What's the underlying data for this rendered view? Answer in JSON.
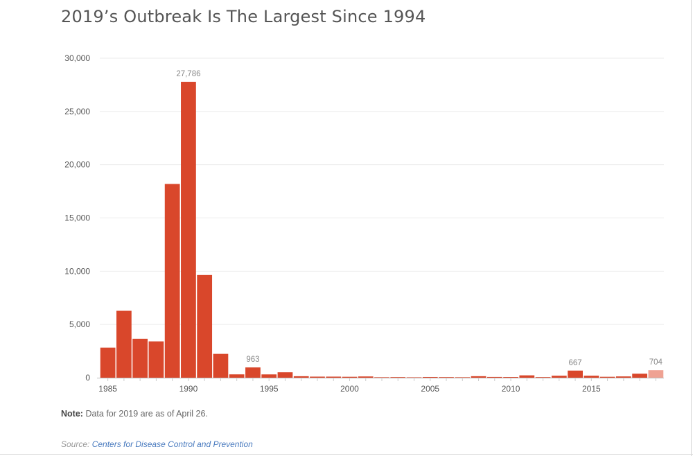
{
  "title": "2019’s Outbreak Is The Largest Since 1994",
  "note": {
    "label": "Note:",
    "text": "Data for 2019 are as of April 26."
  },
  "source": {
    "label": "Source:",
    "link_text": "Centers for Disease Control and Prevention"
  },
  "colors": {
    "bar": "#d9472b",
    "bar_partial": "#efa293",
    "grid": "#ebebeb",
    "axis_text": "#555555",
    "data_label": "#888888"
  },
  "chart_data": {
    "type": "bar",
    "x": [
      1985,
      1986,
      1987,
      1988,
      1989,
      1990,
      1991,
      1992,
      1993,
      1994,
      1995,
      1996,
      1997,
      1998,
      1999,
      2000,
      2001,
      2002,
      2003,
      2004,
      2005,
      2006,
      2007,
      2008,
      2009,
      2010,
      2011,
      2012,
      2013,
      2014,
      2015,
      2016,
      2017,
      2018,
      2019
    ],
    "values": [
      2822,
      6282,
      3655,
      3411,
      18193,
      27786,
      9643,
      2237,
      312,
      963,
      309,
      508,
      138,
      100,
      100,
      86,
      116,
      44,
      56,
      37,
      66,
      55,
      43,
      140,
      71,
      63,
      220,
      55,
      187,
      667,
      188,
      86,
      120,
      375,
      704
    ],
    "highlight": {
      "2019": "partial"
    },
    "data_labels": {
      "1990": "27,786",
      "1994": "963",
      "2014": "667",
      "2019": "704"
    },
    "y_ticks": [
      "0",
      "5,000",
      "10,000",
      "15,000",
      "20,000",
      "25,000",
      "30,000"
    ],
    "x_ticks": [
      "1985",
      "1990",
      "1995",
      "2000",
      "2005",
      "2010",
      "2015"
    ],
    "ylim": [
      0,
      30000
    ],
    "grid": true
  }
}
